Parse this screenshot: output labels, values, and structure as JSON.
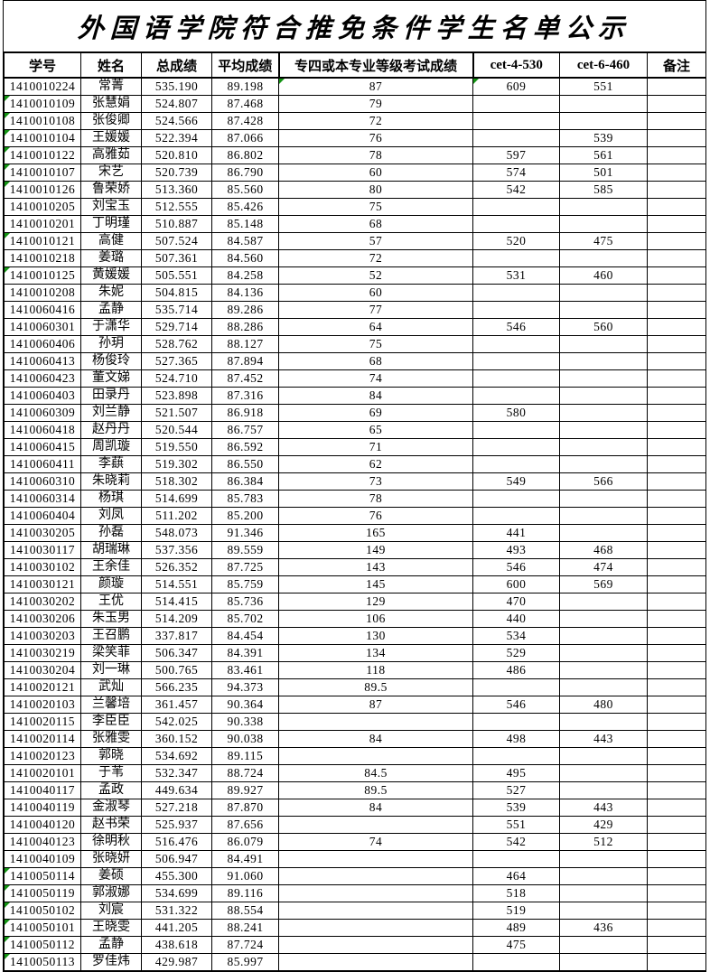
{
  "title": "外国语学院符合推免条件学生名单公示",
  "colors": {
    "grid": "#000000",
    "background": "#ffffff",
    "stored_as_text_marker": "#149414"
  },
  "table": {
    "columns": [
      "学号",
      "姓名",
      "总成绩",
      "平均成绩",
      "专四或本专业等级考试成绩",
      "cet-4-530",
      "cet-6-460",
      "备注"
    ],
    "column_keys": [
      "student-id",
      "name",
      "total-score",
      "average-score",
      "tem4-or-major-exam-score",
      "cet4",
      "cet6",
      "remarks"
    ],
    "rows": [
      [
        "1410010224",
        "常菁",
        "535.190",
        "89.198",
        "87",
        "609",
        "551",
        ""
      ],
      [
        "1410010109",
        "张慧娟",
        "524.807",
        "87.468",
        "79",
        "",
        "",
        ""
      ],
      [
        "1410010108",
        "张俊卿",
        "524.566",
        "87.428",
        "72",
        "",
        "",
        ""
      ],
      [
        "1410010104",
        "王媛媛",
        "522.394",
        "87.066",
        "76",
        "",
        "539",
        ""
      ],
      [
        "1410010122",
        "高雅茹",
        "520.810",
        "86.802",
        "78",
        "597",
        "561",
        ""
      ],
      [
        "1410010107",
        "宋艺",
        "520.739",
        "86.790",
        "60",
        "574",
        "501",
        ""
      ],
      [
        "1410010126",
        "鲁荣娇",
        "513.360",
        "85.560",
        "80",
        "542",
        "585",
        ""
      ],
      [
        "1410010205",
        "刘宝玉",
        "512.555",
        "85.426",
        "75",
        "",
        "",
        ""
      ],
      [
        "1410010201",
        "丁明瑾",
        "510.887",
        "85.148",
        "68",
        "",
        "",
        ""
      ],
      [
        "1410010121",
        "高健",
        "507.524",
        "84.587",
        "57",
        "520",
        "475",
        ""
      ],
      [
        "1410010218",
        "姜璐",
        "507.361",
        "84.560",
        "72",
        "",
        "",
        ""
      ],
      [
        "1410010125",
        "黄媛媛",
        "505.551",
        "84.258",
        "52",
        "531",
        "460",
        ""
      ],
      [
        "1410010208",
        "朱妮",
        "504.815",
        "84.136",
        "60",
        "",
        "",
        ""
      ],
      [
        "1410060416",
        "孟静",
        "535.714",
        "89.286",
        "77",
        "",
        "",
        ""
      ],
      [
        "1410060301",
        "于潇华",
        "529.714",
        "88.286",
        "64",
        "546",
        "560",
        ""
      ],
      [
        "1410060406",
        "孙玥",
        "528.762",
        "88.127",
        "75",
        "",
        "",
        ""
      ],
      [
        "1410060413",
        "杨俊玲",
        "527.365",
        "87.894",
        "68",
        "",
        "",
        ""
      ],
      [
        "1410060423",
        "董文娣",
        "524.710",
        "87.452",
        "74",
        "",
        "",
        ""
      ],
      [
        "1410060403",
        "田录丹",
        "523.898",
        "87.316",
        "84",
        "",
        "",
        ""
      ],
      [
        "1410060309",
        "刘兰静",
        "521.507",
        "86.918",
        "69",
        "580",
        "",
        ""
      ],
      [
        "1410060418",
        "赵丹丹",
        "520.544",
        "86.757",
        "65",
        "",
        "",
        ""
      ],
      [
        "1410060415",
        "周凯璇",
        "519.550",
        "86.592",
        "71",
        "",
        "",
        ""
      ],
      [
        "1410060411",
        "李蕻",
        "519.302",
        "86.550",
        "62",
        "",
        "",
        ""
      ],
      [
        "1410060310",
        "朱晓莉",
        "518.302",
        "86.384",
        "73",
        "549",
        "566",
        ""
      ],
      [
        "1410060314",
        "杨琪",
        "514.699",
        "85.783",
        "78",
        "",
        "",
        ""
      ],
      [
        "1410060404",
        "刘凤",
        "511.202",
        "85.200",
        "76",
        "",
        "",
        ""
      ],
      [
        "1410030205",
        "孙磊",
        "548.073",
        "91.346",
        "165",
        "441",
        "",
        ""
      ],
      [
        "1410030117",
        "胡瑞琳",
        "537.356",
        "89.559",
        "149",
        "493",
        "468",
        ""
      ],
      [
        "1410030102",
        "王余佳",
        "526.352",
        "87.725",
        "143",
        "546",
        "474",
        ""
      ],
      [
        "1410030121",
        "颜璇",
        "514.551",
        "85.759",
        "145",
        "600",
        "569",
        ""
      ],
      [
        "1410030202",
        "王优",
        "514.415",
        "85.736",
        "129",
        "470",
        "",
        ""
      ],
      [
        "1410030206",
        "朱玉男",
        "514.209",
        "85.702",
        "106",
        "440",
        "",
        ""
      ],
      [
        "1410030203",
        "王召鹏",
        "337.817",
        "84.454",
        "130",
        "534",
        "",
        ""
      ],
      [
        "1410030219",
        "梁笑菲",
        "506.347",
        "84.391",
        "134",
        "529",
        "",
        ""
      ],
      [
        "1410030204",
        "刘一琳",
        "500.765",
        "83.461",
        "118",
        "486",
        "",
        ""
      ],
      [
        "1410020121",
        "武灿",
        "566.235",
        "94.373",
        "89.5",
        "",
        "",
        ""
      ],
      [
        "1410020103",
        "兰馨培",
        "361.457",
        "90.364",
        "87",
        "546",
        "480",
        ""
      ],
      [
        "1410020115",
        "李臣臣",
        "542.025",
        "90.338",
        "",
        "",
        "",
        ""
      ],
      [
        "1410020114",
        "张雅雯",
        "360.152",
        "90.038",
        "84",
        "498",
        "443",
        ""
      ],
      [
        "1410020123",
        "郭晓",
        "534.692",
        "89.115",
        "",
        "",
        "",
        ""
      ],
      [
        "1410020101",
        "于苇",
        "532.347",
        "88.724",
        "84.5",
        "495",
        "",
        ""
      ],
      [
        "1410040117",
        "孟政",
        "449.634",
        "89.927",
        "89.5",
        "527",
        "",
        ""
      ],
      [
        "1410040119",
        "金淑琴",
        "527.218",
        "87.870",
        "84",
        "539",
        "443",
        ""
      ],
      [
        "1410040120",
        "赵书荣",
        "525.937",
        "87.656",
        "",
        "551",
        "429",
        ""
      ],
      [
        "1410040123",
        "徐明秋",
        "516.476",
        "86.079",
        "74",
        "542",
        "512",
        ""
      ],
      [
        "1410040109",
        "张晓妍",
        "506.947",
        "84.491",
        "",
        "",
        "",
        ""
      ],
      [
        "1410050114",
        "姜硕",
        "455.300",
        "91.060",
        "",
        "464",
        "",
        ""
      ],
      [
        "1410050119",
        "郭淑娜",
        "534.699",
        "89.116",
        "",
        "518",
        "",
        ""
      ],
      [
        "1410050102",
        "刘宸",
        "531.322",
        "88.554",
        "",
        "519",
        "",
        ""
      ],
      [
        "1410050101",
        "王晓雯",
        "441.205",
        "88.241",
        "",
        "489",
        "436",
        ""
      ],
      [
        "1410050112",
        "孟静",
        "438.618",
        "87.724",
        "",
        "475",
        "",
        ""
      ],
      [
        "1410050113",
        "罗佳炜",
        "429.987",
        "85.997",
        "",
        "",
        "",
        ""
      ]
    ],
    "stored_as_text_markers": {
      "student_id_col_rows": [
        2,
        3,
        4,
        5,
        6,
        7,
        10,
        12,
        47,
        48,
        49,
        50,
        51,
        52
      ],
      "tem4_col_rows": [
        1
      ],
      "cet4_col_rows": [
        1
      ]
    }
  }
}
